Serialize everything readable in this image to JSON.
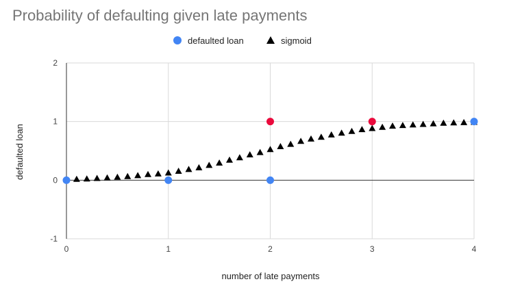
{
  "chart_data": {
    "type": "scatter",
    "title": "Probability of defaulting given late payments",
    "xlabel": "number of late payments",
    "ylabel": "defaulted loan",
    "xlim": [
      0,
      4
    ],
    "ylim": [
      -1,
      2
    ],
    "x_ticks": [
      "0",
      "1",
      "2",
      "3",
      "4"
    ],
    "y_ticks": [
      "-1",
      "0",
      "1",
      "2"
    ],
    "grid": true,
    "legend_position": "top",
    "series": [
      {
        "name": "defaulted loan",
        "marker": "circle",
        "color": "#4285F4",
        "highlight_color": "#EA0A3C",
        "points": [
          {
            "x": 0,
            "y": 0,
            "highlight": false
          },
          {
            "x": 1,
            "y": 0,
            "highlight": false
          },
          {
            "x": 2,
            "y": 0,
            "highlight": false
          },
          {
            "x": 2,
            "y": 1,
            "highlight": true
          },
          {
            "x": 3,
            "y": 1,
            "highlight": true
          },
          {
            "x": 4,
            "y": 1,
            "highlight": false
          }
        ]
      },
      {
        "name": "sigmoid",
        "marker": "triangle",
        "color": "#000000",
        "points": [
          {
            "x": 0.0,
            "y": 0.007
          },
          {
            "x": 0.1,
            "y": 0.012
          },
          {
            "x": 0.2,
            "y": 0.018
          },
          {
            "x": 0.3,
            "y": 0.027
          },
          {
            "x": 0.4,
            "y": 0.036
          },
          {
            "x": 0.5,
            "y": 0.047
          },
          {
            "x": 0.6,
            "y": 0.06
          },
          {
            "x": 0.7,
            "y": 0.076
          },
          {
            "x": 0.8,
            "y": 0.095
          },
          {
            "x": 0.9,
            "y": 0.105
          },
          {
            "x": 1.0,
            "y": 0.12
          },
          {
            "x": 1.1,
            "y": 0.15
          },
          {
            "x": 1.2,
            "y": 0.18
          },
          {
            "x": 1.3,
            "y": 0.21
          },
          {
            "x": 1.4,
            "y": 0.25
          },
          {
            "x": 1.5,
            "y": 0.29
          },
          {
            "x": 1.6,
            "y": 0.34
          },
          {
            "x": 1.7,
            "y": 0.38
          },
          {
            "x": 1.8,
            "y": 0.43
          },
          {
            "x": 1.9,
            "y": 0.47
          },
          {
            "x": 2.0,
            "y": 0.52
          },
          {
            "x": 2.1,
            "y": 0.57
          },
          {
            "x": 2.2,
            "y": 0.61
          },
          {
            "x": 2.3,
            "y": 0.66
          },
          {
            "x": 2.4,
            "y": 0.7
          },
          {
            "x": 2.5,
            "y": 0.73
          },
          {
            "x": 2.6,
            "y": 0.77
          },
          {
            "x": 2.7,
            "y": 0.8
          },
          {
            "x": 2.8,
            "y": 0.83
          },
          {
            "x": 2.9,
            "y": 0.86
          },
          {
            "x": 3.0,
            "y": 0.88
          },
          {
            "x": 3.1,
            "y": 0.9
          },
          {
            "x": 3.2,
            "y": 0.92
          },
          {
            "x": 3.3,
            "y": 0.93
          },
          {
            "x": 3.4,
            "y": 0.94
          },
          {
            "x": 3.5,
            "y": 0.95
          },
          {
            "x": 3.6,
            "y": 0.96
          },
          {
            "x": 3.7,
            "y": 0.97
          },
          {
            "x": 3.8,
            "y": 0.975
          },
          {
            "x": 3.9,
            "y": 0.98
          },
          {
            "x": 4.0,
            "y": 0.985
          }
        ]
      }
    ]
  }
}
